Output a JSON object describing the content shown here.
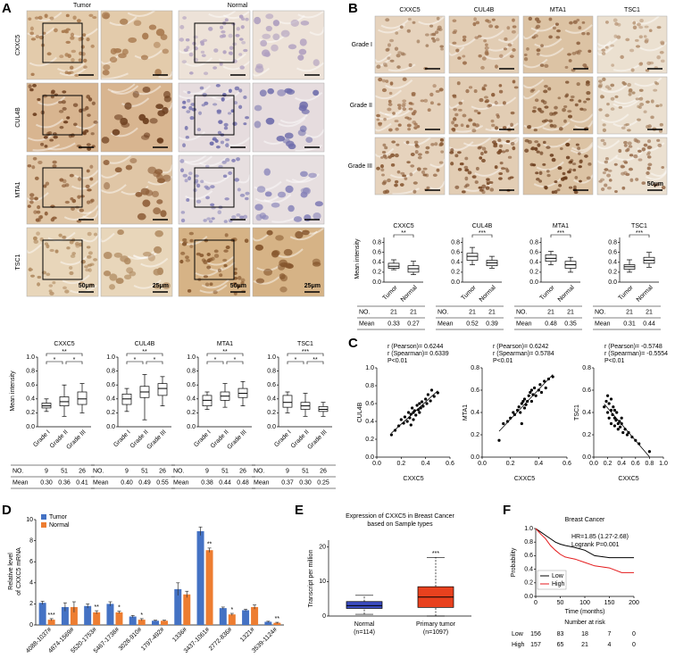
{
  "panel_a": {
    "label": "A",
    "columns": [
      "Tumor",
      "Normal"
    ],
    "rows": [
      "CXXC5",
      "CUL4B",
      "MTA1",
      "TSC1"
    ],
    "scale_bars": [
      "50μm",
      "25μm",
      "50μm",
      "25μm"
    ],
    "ylabel": "Mean intensity",
    "categories": [
      "Grade I",
      "Grade II",
      "Grade III"
    ],
    "ylim": [
      0,
      1
    ],
    "yticks": [
      {
        "value": 0,
        "label": "0.0"
      },
      0.2,
      0.4,
      0.6,
      0.8,
      {
        "value": 1,
        "label": "1.0"
      }
    ],
    "table_labels": [
      "NO.",
      "Mean"
    ],
    "plots": [
      {
        "title": "CXXC5",
        "boxes": [
          {
            "min": 0.22,
            "q1": 0.27,
            "median": 0.3,
            "q3": 0.34,
            "max": 0.4
          },
          {
            "min": 0.15,
            "q1": 0.3,
            "median": 0.36,
            "q3": 0.43,
            "max": 0.6
          },
          {
            "min": 0.2,
            "q1": 0.32,
            "median": 0.4,
            "q3": 0.5,
            "max": 0.62
          }
        ],
        "significance": [
          "**",
          "*",
          "*"
        ],
        "n": [
          9,
          51,
          26
        ],
        "mean": [
          "0.30",
          "0.36",
          "0.41"
        ]
      },
      {
        "title": "CUL4B",
        "boxes": [
          {
            "min": 0.22,
            "q1": 0.32,
            "median": 0.4,
            "q3": 0.47,
            "max": 0.55
          },
          {
            "min": 0.1,
            "q1": 0.42,
            "median": 0.5,
            "q3": 0.58,
            "max": 0.75
          },
          {
            "min": 0.3,
            "q1": 0.45,
            "median": 0.55,
            "q3": 0.62,
            "max": 0.72
          }
        ],
        "significance": [
          "**",
          "*",
          "*"
        ],
        "n": [
          9,
          51,
          26
        ],
        "mean": [
          "0.40",
          "0.49",
          "0.55"
        ]
      },
      {
        "title": "MTA1",
        "boxes": [
          {
            "min": 0.25,
            "q1": 0.3,
            "median": 0.38,
            "q3": 0.45,
            "max": 0.5
          },
          {
            "min": 0.28,
            "q1": 0.38,
            "median": 0.44,
            "q3": 0.5,
            "max": 0.62
          },
          {
            "min": 0.3,
            "q1": 0.42,
            "median": 0.48,
            "q3": 0.55,
            "max": 0.65
          }
        ],
        "significance": [
          "**",
          "*",
          "*"
        ],
        "n": [
          9,
          51,
          26
        ],
        "mean": [
          "0.38",
          "0.44",
          "0.48"
        ]
      },
      {
        "title": "TSC1",
        "boxes": [
          {
            "min": 0.2,
            "q1": 0.28,
            "median": 0.35,
            "q3": 0.45,
            "max": 0.5
          },
          {
            "min": 0.15,
            "q1": 0.25,
            "median": 0.3,
            "q3": 0.35,
            "max": 0.48
          },
          {
            "min": 0.15,
            "q1": 0.22,
            "median": 0.25,
            "q3": 0.29,
            "max": 0.35
          }
        ],
        "significance": [
          "***",
          "*",
          "**"
        ],
        "n": [
          9,
          51,
          26
        ],
        "mean": [
          "0.37",
          "0.30",
          "0.25"
        ]
      }
    ]
  },
  "panel_b": {
    "label": "B",
    "columns": [
      "CXXC5",
      "CUL4B",
      "MTA1",
      "TSC1"
    ],
    "rows": [
      "Grade I",
      "Grade II",
      "Grade III"
    ],
    "scale_bar": "50μm",
    "ylabel": "Mean intensity",
    "categories": [
      "Tumor",
      "Normal"
    ],
    "ylim": [
      0,
      0.9
    ],
    "yticks": [
      {
        "value": 0,
        "label": "0.0"
      },
      0.2,
      0.4,
      0.6,
      0.8
    ],
    "table_labels": [
      "NO.",
      "Mean"
    ],
    "plots": [
      {
        "title": "CXXC5",
        "boxes": [
          {
            "min": 0.25,
            "q1": 0.28,
            "median": 0.32,
            "q3": 0.38,
            "max": 0.45
          },
          {
            "min": 0.15,
            "q1": 0.2,
            "median": 0.27,
            "q3": 0.33,
            "max": 0.42
          }
        ],
        "significance": [
          "**"
        ],
        "n": [
          21,
          21
        ],
        "mean": [
          "0.33",
          "0.27"
        ]
      },
      {
        "title": "CUL4B",
        "boxes": [
          {
            "min": 0.35,
            "q1": 0.44,
            "median": 0.52,
            "q3": 0.58,
            "max": 0.7
          },
          {
            "min": 0.28,
            "q1": 0.33,
            "median": 0.39,
            "q3": 0.44,
            "max": 0.52
          }
        ],
        "significance": [
          "***"
        ],
        "n": [
          21,
          21
        ],
        "mean": [
          "0.52",
          "0.39"
        ]
      },
      {
        "title": "MTA1",
        "boxes": [
          {
            "min": 0.35,
            "q1": 0.42,
            "median": 0.48,
            "q3": 0.55,
            "max": 0.62
          },
          {
            "min": 0.2,
            "q1": 0.28,
            "median": 0.35,
            "q3": 0.42,
            "max": 0.5
          }
        ],
        "significance": [
          "***"
        ],
        "n": [
          21,
          21
        ],
        "mean": [
          "0.48",
          "0.35"
        ]
      },
      {
        "title": "TSC1",
        "boxes": [
          {
            "min": 0.2,
            "q1": 0.26,
            "median": 0.31,
            "q3": 0.35,
            "max": 0.45
          },
          {
            "min": 0.3,
            "q1": 0.38,
            "median": 0.44,
            "q3": 0.5,
            "max": 0.6
          }
        ],
        "significance": [
          "***"
        ],
        "n": [
          21,
          21
        ],
        "mean": [
          "0.31",
          "0.44"
        ]
      }
    ]
  },
  "panel_c": {
    "label": "C",
    "xlabel": "CXXC5",
    "plots": [
      {
        "ylabel": "CUL4B",
        "annotations": [
          "r (Pearson)= 0.6244",
          "r (Spearman)= 0.6339",
          "P<0.01"
        ],
        "xlim": [
          0,
          0.6
        ],
        "xticks": [
          {
            "value": 0,
            "label": "0.0"
          },
          0.2,
          0.4,
          0.6
        ],
        "ylim": [
          0,
          1
        ],
        "yticks": [
          {
            "value": 0,
            "label": "0.0"
          },
          0.2,
          0.4,
          0.6,
          0.8,
          {
            "value": 1,
            "label": "1.0"
          }
        ],
        "x": [
          0.12,
          0.15,
          0.18,
          0.2,
          0.22,
          0.23,
          0.25,
          0.26,
          0.27,
          0.28,
          0.29,
          0.3,
          0.3,
          0.31,
          0.32,
          0.33,
          0.34,
          0.35,
          0.35,
          0.36,
          0.37,
          0.38,
          0.4,
          0.41,
          0.42,
          0.44,
          0.45,
          0.47,
          0.5,
          0.28
        ],
        "y": [
          0.25,
          0.3,
          0.35,
          0.42,
          0.38,
          0.45,
          0.4,
          0.5,
          0.44,
          0.48,
          0.55,
          0.5,
          0.42,
          0.52,
          0.47,
          0.58,
          0.53,
          0.6,
          0.5,
          0.55,
          0.62,
          0.57,
          0.65,
          0.6,
          0.7,
          0.63,
          0.75,
          0.68,
          0.72,
          0.36
        ]
      },
      {
        "ylabel": "MTA1",
        "annotations": [
          "r (Pearson)= 0.6242",
          "r (Spearman)= 0.5784",
          "P<0.01"
        ],
        "xlim": [
          0,
          0.6
        ],
        "xticks": [
          {
            "value": 0,
            "label": "0.0"
          },
          0.2,
          0.4,
          0.6
        ],
        "ylim": [
          0,
          0.8
        ],
        "yticks": [
          {
            "value": 0,
            "label": "0.0"
          },
          0.2,
          0.4,
          0.6,
          0.8
        ],
        "x": [
          0.12,
          0.15,
          0.18,
          0.2,
          0.22,
          0.23,
          0.25,
          0.26,
          0.27,
          0.28,
          0.29,
          0.3,
          0.3,
          0.31,
          0.32,
          0.33,
          0.34,
          0.35,
          0.35,
          0.36,
          0.37,
          0.38,
          0.4,
          0.41,
          0.42,
          0.44,
          0.45,
          0.47,
          0.5,
          0.28
        ],
        "y": [
          0.15,
          0.3,
          0.32,
          0.35,
          0.4,
          0.38,
          0.42,
          0.45,
          0.4,
          0.48,
          0.5,
          0.44,
          0.52,
          0.47,
          0.5,
          0.55,
          0.58,
          0.5,
          0.6,
          0.56,
          0.62,
          0.55,
          0.6,
          0.65,
          0.58,
          0.68,
          0.62,
          0.7,
          0.72,
          0.3
        ]
      },
      {
        "ylabel": "TSC1",
        "annotations": [
          "r (Pearson)= -0.5748",
          "r (Spearman)= -0.5554",
          "P<0.01"
        ],
        "xlim": [
          0,
          1
        ],
        "xticks": [
          {
            "value": 0,
            "label": "0.0"
          },
          0.2,
          0.4,
          0.6,
          0.8,
          {
            "value": 1,
            "label": "1.0"
          }
        ],
        "ylim": [
          0,
          0.8
        ],
        "yticks": [
          {
            "value": 0,
            "label": "0.0"
          },
          0.2,
          0.4,
          0.6,
          0.8
        ],
        "x": [
          0.15,
          0.18,
          0.2,
          0.22,
          0.22,
          0.25,
          0.25,
          0.27,
          0.28,
          0.3,
          0.3,
          0.32,
          0.33,
          0.35,
          0.35,
          0.37,
          0.38,
          0.4,
          0.42,
          0.45,
          0.48,
          0.5,
          0.55,
          0.6,
          0.25,
          0.3,
          0.2,
          0.4,
          0.65,
          0.8
        ],
        "y": [
          0.45,
          0.5,
          0.4,
          0.48,
          0.35,
          0.42,
          0.3,
          0.38,
          0.45,
          0.35,
          0.28,
          0.33,
          0.4,
          0.3,
          0.25,
          0.32,
          0.27,
          0.3,
          0.22,
          0.25,
          0.2,
          0.22,
          0.18,
          0.15,
          0.52,
          0.42,
          0.55,
          0.35,
          0.12,
          0.05
        ]
      }
    ]
  },
  "panel_d": {
    "label": "D",
    "ylabel": [
      "Relative level",
      "of CXXC5 mRNA"
    ],
    "categories": [
      "4088-1037#",
      "4874-1569#",
      "5520-1753#",
      "5467-1738#",
      "3028-910#",
      "1797-492#",
      "1336#",
      "3437-1061#",
      "2772-836#",
      "1321#",
      "3539-1124#"
    ],
    "series": [
      {
        "name": "Tumor",
        "color": "#4472c4",
        "values": [
          2.1,
          1.7,
          1.8,
          2.0,
          0.8,
          0.4,
          3.4,
          8.9,
          1.6,
          1.4,
          0.3
        ],
        "errors": [
          0.15,
          0.4,
          0.2,
          0.2,
          0.1,
          0.05,
          0.6,
          0.4,
          0.1,
          0.1,
          0.05
        ]
      },
      {
        "name": "Normal",
        "color": "#ed7d31",
        "values": [
          0.5,
          1.7,
          1.2,
          1.2,
          0.5,
          0.4,
          2.9,
          7.1,
          1.0,
          1.7,
          0.2
        ],
        "errors": [
          0.1,
          0.5,
          0.15,
          0.1,
          0.1,
          0.05,
          0.3,
          0.2,
          0.1,
          0.2,
          0.05
        ]
      }
    ],
    "significance": [
      "***",
      null,
      "**",
      "*",
      "*",
      null,
      null,
      "**",
      "*",
      null,
      "**"
    ],
    "ylim": [
      0,
      10
    ],
    "yticks": [
      0,
      2,
      4,
      6,
      8,
      10
    ]
  },
  "panel_e": {
    "label": "E",
    "title": [
      "Expression of CXXC5 in Breast Cancer",
      "based on Sample types"
    ],
    "ylabel": "Transcript per million",
    "categories": [
      "Normal",
      "Primary tumor"
    ],
    "n_labels": [
      "(n=114)",
      "(n=1097)"
    ],
    "colors": [
      "#3b4cc0",
      "#e8411e"
    ],
    "boxes": [
      {
        "min": 0.5,
        "q1": 2.2,
        "median": 3,
        "q3": 4.2,
        "max": 6
      },
      {
        "min": 0,
        "q1": 2.5,
        "median": 5.5,
        "q3": 8.5,
        "max": 17
      }
    ],
    "significance": "***",
    "ylim": [
      0,
      22
    ],
    "yticks": [
      0,
      10,
      20
    ]
  },
  "panel_f": {
    "label": "F",
    "title": "Breast Cancer",
    "annotations": [
      "HR=1.85 (1.27-2.68)",
      "Logrank P=0.001"
    ],
    "ylabel": "Probability",
    "xlabel": "Time (months)",
    "xlim": [
      0,
      200
    ],
    "xticks": [
      0,
      50,
      100,
      150,
      200
    ],
    "ylim": [
      0,
      1
    ],
    "yticks": [
      {
        "value": 0,
        "label": "0.0"
      },
      0.2,
      0.4,
      0.6,
      0.8,
      {
        "value": 1,
        "label": "1.0"
      }
    ],
    "series": [
      {
        "name": "Low",
        "color": "#000000",
        "x": [
          0,
          10,
          20,
          30,
          40,
          50,
          60,
          80,
          100,
          120,
          150,
          200
        ],
        "y": [
          1.0,
          0.95,
          0.9,
          0.85,
          0.8,
          0.77,
          0.75,
          0.72,
          0.68,
          0.6,
          0.57,
          0.57
        ],
        "at_risk": [
          156,
          83,
          18,
          7,
          0
        ]
      },
      {
        "name": "High",
        "color": "#e41a1c",
        "x": [
          0,
          10,
          20,
          30,
          40,
          50,
          60,
          80,
          100,
          120,
          150,
          175,
          200
        ],
        "y": [
          1.0,
          0.92,
          0.85,
          0.75,
          0.68,
          0.62,
          0.58,
          0.55,
          0.5,
          0.45,
          0.42,
          0.35,
          0.35
        ],
        "at_risk": [
          157,
          65,
          21,
          4,
          0
        ]
      }
    ],
    "risk_title": "Number at risk"
  }
}
